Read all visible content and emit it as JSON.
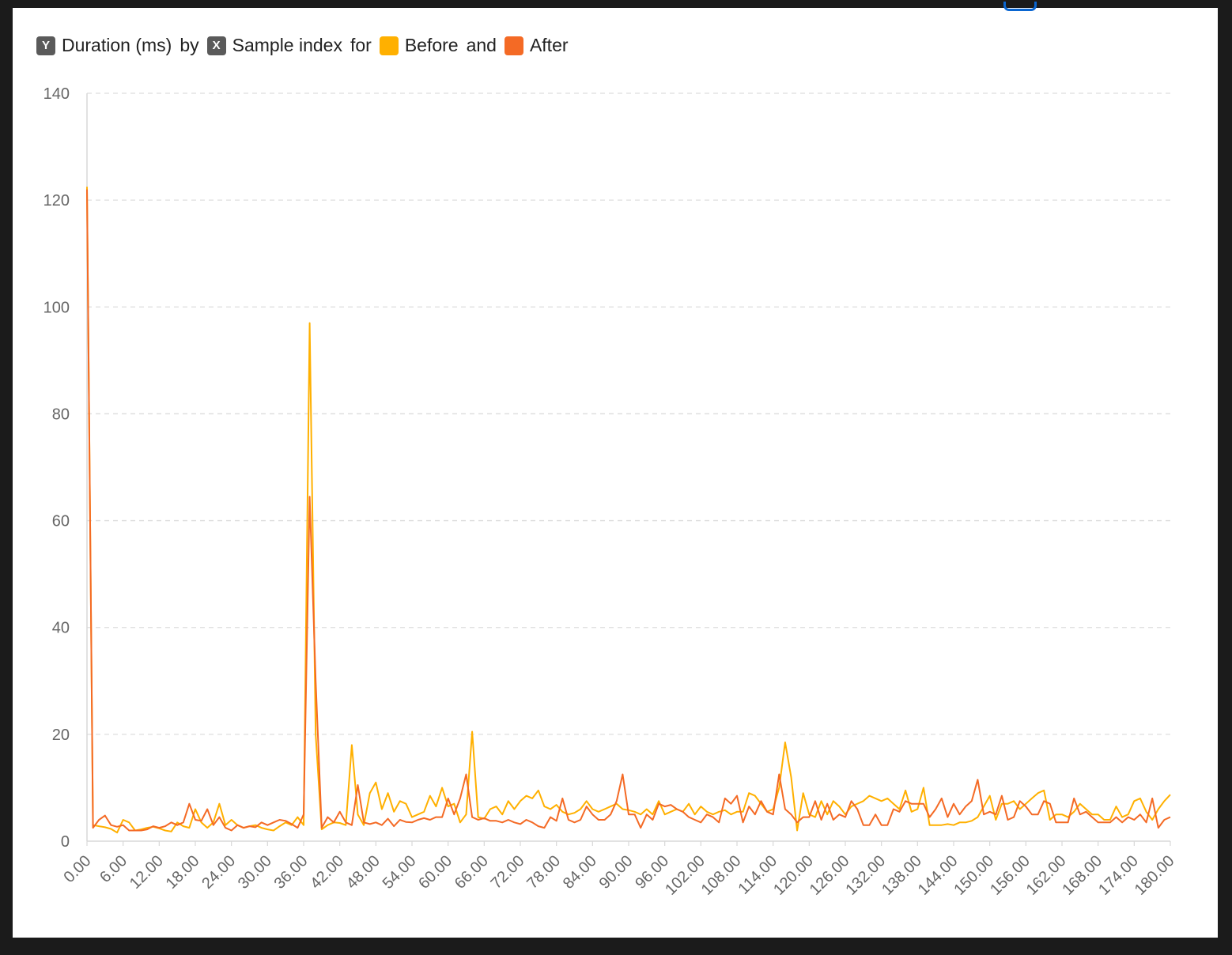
{
  "legend": {
    "y_badge": "Y",
    "y_label": "Duration (ms)",
    "by": "by",
    "x_badge": "X",
    "x_label": "Sample index",
    "for": "for",
    "series1": "Before",
    "and": "and",
    "series2": "After"
  },
  "colors": {
    "before": "#ffb000",
    "after": "#f46a25",
    "grid": "#dddddd",
    "axis": "#d8d8d8"
  },
  "chart_data": {
    "type": "line",
    "title": "",
    "xlabel": "Sample index",
    "ylabel": "Duration (ms)",
    "xlim": [
      0,
      180
    ],
    "ylim": [
      0,
      140
    ],
    "xticks": [
      0,
      6,
      12,
      18,
      24,
      30,
      36,
      42,
      48,
      54,
      60,
      66,
      72,
      78,
      84,
      90,
      96,
      102,
      108,
      114,
      120,
      126,
      132,
      138,
      144,
      150,
      156,
      162,
      168,
      174,
      180
    ],
    "yticks": [
      0,
      20,
      40,
      60,
      80,
      100,
      120,
      140
    ],
    "grid": "horizontal dashed",
    "legend_position": "top-left",
    "series": [
      {
        "name": "Before",
        "color": "#ffb000",
        "values": [
          122.5,
          3,
          2.8,
          2.6,
          2.3,
          1.6,
          4,
          3.5,
          2,
          2.2,
          2.5,
          2.7,
          2.4,
          2,
          1.8,
          3.5,
          2.8,
          2.5,
          6,
          3.5,
          2.5,
          3.5,
          7,
          3,
          4,
          3,
          2.5,
          2.8,
          3,
          2.5,
          2.2,
          2,
          2.8,
          3.5,
          3,
          4.5,
          3,
          97,
          20,
          2.2,
          3,
          3.5,
          3.4,
          3,
          18,
          5,
          3,
          9,
          11,
          6,
          9,
          5.5,
          7.5,
          7,
          4.5,
          5,
          5.5,
          8.5,
          6.5,
          10,
          6.5,
          7,
          3.5,
          5,
          20.5,
          4.5,
          4.2,
          6,
          6.5,
          5,
          7.5,
          6,
          7.5,
          8.5,
          8,
          9.5,
          6.5,
          6,
          6.8,
          5.5,
          5,
          5.3,
          6,
          7.5,
          6,
          5.5,
          6,
          6.5,
          7,
          6,
          5.8,
          5.5,
          5,
          6,
          5,
          7.5,
          5,
          5.5,
          6,
          5.5,
          7,
          5,
          6.5,
          5.5,
          5,
          5.5,
          5.8,
          5,
          5.5,
          5.5,
          9,
          8.5,
          7,
          5.5,
          6,
          10,
          18.5,
          12,
          2,
          9,
          5,
          4.5,
          7.5,
          5,
          7.5,
          6.5,
          5,
          6.5,
          7,
          7.5,
          8.5,
          8,
          7.5,
          8,
          7,
          6,
          9.5,
          5.5,
          6,
          10,
          3,
          3,
          3,
          3.2,
          3,
          3.5,
          3.5,
          3.8,
          4.5,
          6.5,
          8.5,
          4,
          7,
          7,
          7.5,
          6,
          7,
          8,
          9,
          9.5,
          4,
          5,
          5,
          4.5,
          5.5,
          7,
          6,
          5,
          5,
          4,
          4,
          6.5,
          4.5,
          5,
          7.5,
          8,
          5.5,
          4,
          6,
          7.5,
          8.7
        ]
      },
      {
        "name": "After",
        "color": "#f46a25",
        "values": [
          122,
          2.5,
          4,
          4.8,
          3,
          2.7,
          3,
          2,
          2,
          2,
          2.2,
          2.8,
          2.5,
          2.8,
          3.5,
          3,
          3.5,
          7,
          4,
          3.8,
          6,
          3,
          4.5,
          2.5,
          2,
          3,
          2.5,
          2.8,
          2.6,
          3.5,
          3,
          3.5,
          4,
          3.8,
          3.2,
          2.5,
          5,
          64.5,
          30,
          2.5,
          4.5,
          3.5,
          5.5,
          3.5,
          3,
          10.5,
          3.5,
          3.2,
          3.5,
          3,
          4.2,
          2.8,
          4,
          3.6,
          3.5,
          4,
          4.3,
          4,
          4.5,
          4.5,
          8,
          5,
          8,
          12.5,
          4.5,
          4,
          4.3,
          3.8,
          3.8,
          3.5,
          4,
          3.5,
          3.2,
          4,
          3.5,
          2.8,
          2.5,
          4.5,
          3.8,
          8,
          4,
          3.5,
          4,
          6.5,
          5,
          4,
          4,
          5,
          7.5,
          12.5,
          5,
          5,
          2.5,
          5,
          4,
          7,
          6.5,
          6.8,
          6,
          5.5,
          4.5,
          4,
          3.5,
          5,
          4.5,
          3.5,
          8,
          7,
          8.5,
          3.5,
          6.5,
          5,
          7.5,
          5.5,
          5,
          12.5,
          6,
          5,
          3.5,
          4.5,
          4.5,
          7.5,
          4,
          7,
          4,
          5,
          4.5,
          7.5,
          6,
          3,
          3,
          5,
          3,
          3,
          6,
          5.5,
          7.5,
          7,
          7,
          7,
          4.5,
          6,
          8,
          4.5,
          7,
          5,
          6.5,
          7.5,
          11.5,
          5,
          5.5,
          5,
          8.5,
          4,
          4.5,
          7.5,
          6.5,
          5,
          5,
          7.5,
          7,
          3.5,
          3.5,
          3.5,
          8,
          5,
          5.5,
          4.5,
          3.5,
          3.5,
          3.5,
          4.5,
          3.5,
          4.5,
          4,
          5,
          3.5,
          8,
          2.5,
          4,
          4.5
        ]
      }
    ]
  }
}
